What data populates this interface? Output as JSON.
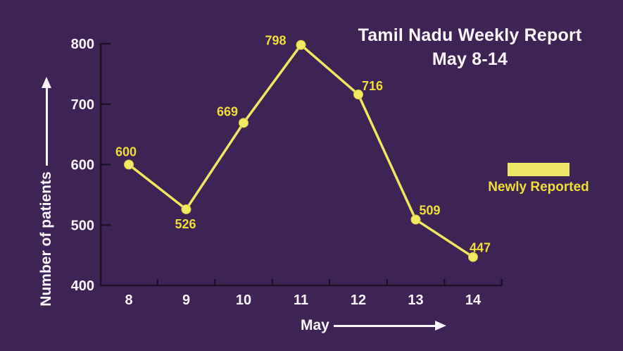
{
  "title": {
    "line1": "Tamil Nadu Weekly Report",
    "line2": "May 8-14"
  },
  "legend": {
    "label": "Newly Reported"
  },
  "axes": {
    "y_label": "Number of patients",
    "x_label": "May"
  },
  "colors": {
    "background": "#3E2355",
    "axis_line": "#1D1128",
    "axis_text": "#FAF6FA",
    "series_line": "#F1E660",
    "marker_fill": "#F3EA63",
    "marker_edge": "#D6CA45",
    "value_label": "#EFDE38",
    "legend_swatch": "#EFE768",
    "legend_text": "#EFDE38"
  },
  "chart_data": {
    "type": "line",
    "title": "Tamil Nadu Weekly Report May 8-14",
    "categories": [
      "8",
      "9",
      "10",
      "11",
      "12",
      "13",
      "14"
    ],
    "series": [
      {
        "name": "Newly Reported",
        "values": [
          600,
          526,
          669,
          798,
          716,
          509,
          447
        ]
      }
    ],
    "xlabel": "May",
    "ylabel": "Number of patients",
    "ylim": [
      400,
      800
    ],
    "yticks": [
      400,
      500,
      600,
      700,
      800
    ],
    "grid": false,
    "legend_position": "right",
    "data_labels": true
  }
}
